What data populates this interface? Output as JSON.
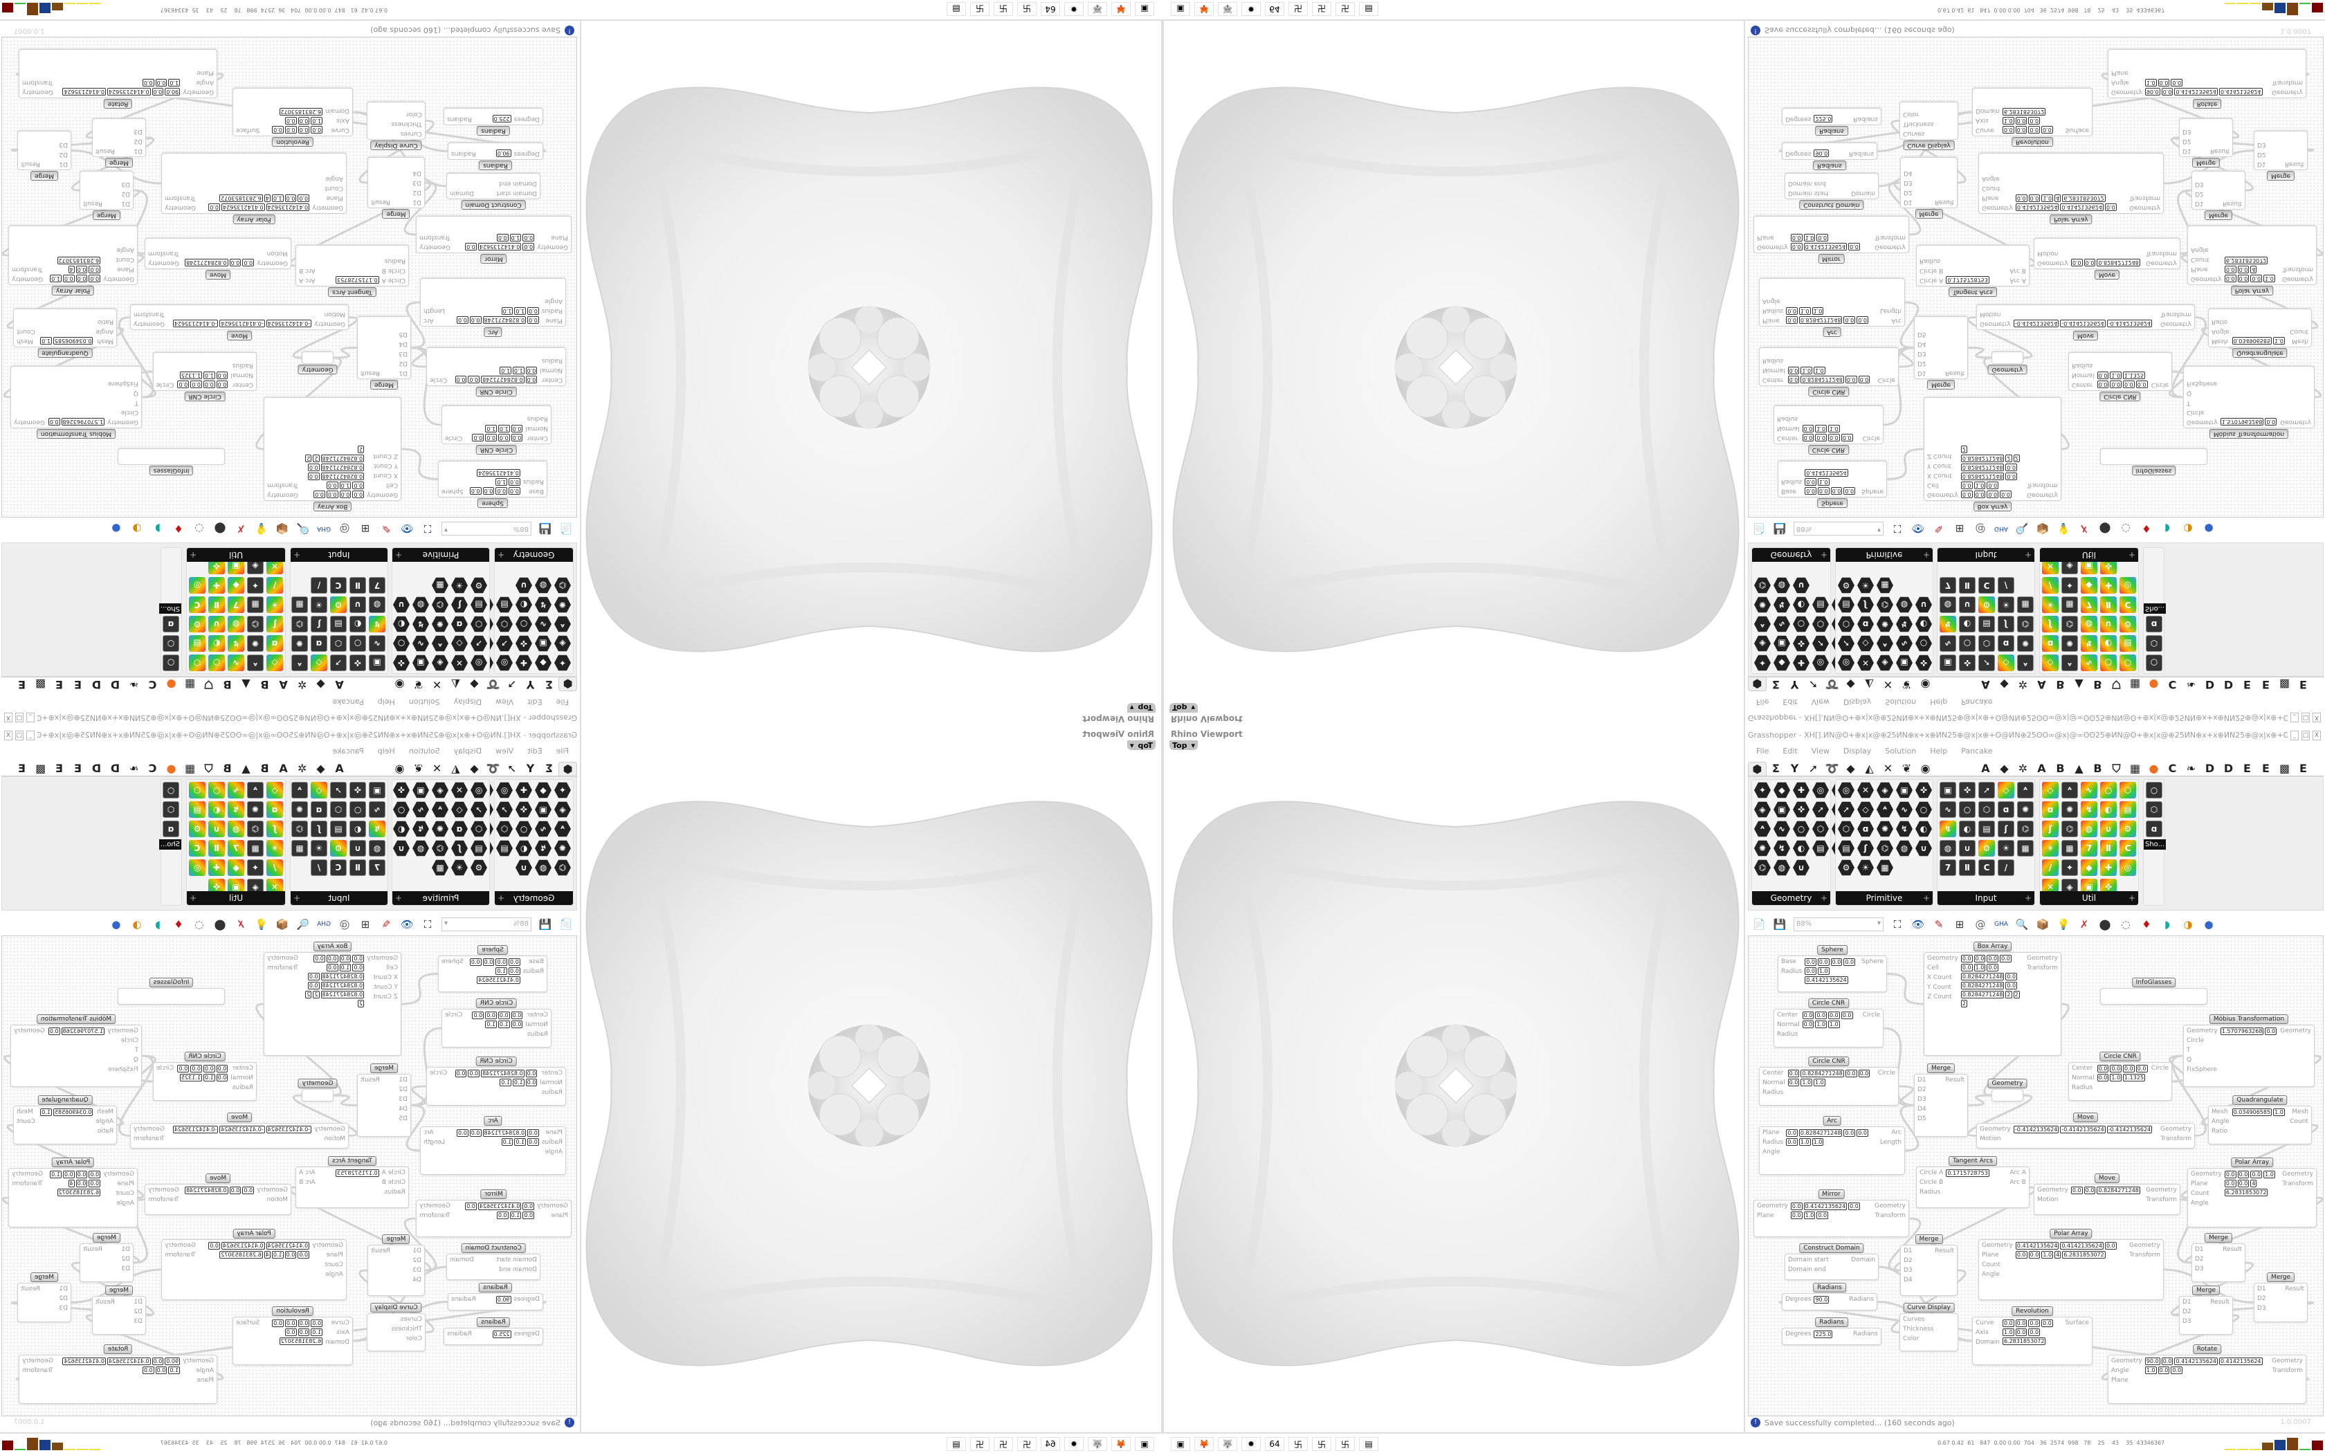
{
  "viewport": {
    "title": "Rhino Viewport",
    "view": "Top",
    "view_icon": "chevron-down-icon"
  },
  "grasshopper": {
    "title": "Grasshopper - XH[].ИN@ʘ+⊕x|x@⊕25ИN⊕x+x⊕ИN25⊕@x|x⊕+ʘ@ИN⊕25ʘʘ∞@x|@∞ʘʘ25⊕ИN@ʘ+⊕x|x@⊕25ИN⊕x+x⊕ИN25⊕@x|x⊕+ʘ@ИN.",
    "window_buttons": [
      "_",
      "□",
      "X"
    ],
    "menu": [
      "File",
      "Edit",
      "View",
      "Display",
      "Solution",
      "Help",
      "Pancake"
    ],
    "tabs": [
      "⬢",
      "Σ",
      "Y",
      "➚",
      "➰",
      "◆",
      "◭",
      "✕",
      "❦",
      "◉",
      "A",
      "◆",
      "✲",
      "A",
      "B",
      "▲",
      "B",
      "⛉",
      "▦",
      "●",
      "C",
      "❧",
      "D",
      "D",
      "E",
      "E",
      "▩",
      "E"
    ],
    "panels": [
      {
        "label": "Geometry",
        "icons": 23,
        "style": "hex"
      },
      {
        "label": "Primitive",
        "icons": 23,
        "style": "hex"
      },
      {
        "label": "Input",
        "icons": 24,
        "style": "sq"
      },
      {
        "label": "Util",
        "icons": 29,
        "style": "mixed"
      },
      {
        "label": "Sho...",
        "icons": 3,
        "style": "sq"
      }
    ],
    "zoom": "88%",
    "toolbar_icons": [
      "new-file-icon",
      "save-icon",
      "zoom-extents-icon",
      "preview-eye-icon",
      "sketch-pen-icon",
      "cluster-icon",
      "gha-icon",
      "search-icon",
      "package-icon",
      "bulb-icon",
      "wire-icon",
      "bake-icon",
      "shade-icon",
      "render-icon",
      "sphere-icon"
    ],
    "status": "Save successfully completed... (160 seconds ago)",
    "version": "1.0.0007",
    "nodes": [
      {
        "title": "Sphere",
        "inputs": [
          "Base",
          "Radius"
        ],
        "outputs": [
          "Sphere"
        ],
        "values": [
          "0.0",
          "0.0",
          "0.0",
          "0.0",
          "0.0",
          "1.0",
          "0.4142135624"
        ]
      },
      {
        "title": "Box Array",
        "inputs": [
          "Geometry",
          "Cell",
          "X Count",
          "Y Count",
          "Z Count"
        ],
        "outputs": [
          "Geometry",
          "Transform"
        ],
        "values": [
          "0.0",
          "0.0",
          "0.0",
          "0.0",
          "0.0",
          "1.0",
          "0.0",
          "0.8284271248",
          "0.0",
          "0.8284271248",
          "0.0",
          "0.8284271248",
          "2",
          "2",
          "2"
        ]
      },
      {
        "title": "InfoGlasses",
        "inputs": [],
        "outputs": [],
        "values": []
      },
      {
        "title": "Circle CNR",
        "inputs": [
          "Center",
          "Normal",
          "Radius"
        ],
        "outputs": [
          "Circle"
        ],
        "values": [
          "0.0",
          "0.0",
          "0.0",
          "0.0",
          "0.0",
          "1.0",
          "1.0"
        ]
      },
      {
        "title": "Circle CNR",
        "inputs": [
          "Center",
          "Normal",
          "Radius"
        ],
        "outputs": [
          "Circle"
        ],
        "values": [
          "0.0",
          "0.8284271248",
          "0.0",
          "0.0",
          "0.0",
          "1.0",
          "1.0"
        ]
      },
      {
        "title": "Möbius Transformation",
        "inputs": [
          "Geometry",
          "Circle",
          "T",
          "Q",
          "FixSphere"
        ],
        "outputs": [
          "Geometry"
        ],
        "values": [
          "1.5707963268",
          "0.0"
        ]
      },
      {
        "title": "Circle CNR",
        "inputs": [
          "Center",
          "Normal",
          "Radius"
        ],
        "outputs": [
          "Circle"
        ],
        "values": [
          "0.0",
          "0.0",
          "0.0",
          "0.0",
          "0.0",
          "1.0",
          "1.1325"
        ]
      },
      {
        "title": "Merge",
        "inputs": [
          "D1",
          "D2",
          "D3",
          "D4",
          "D5"
        ],
        "outputs": [
          "Result"
        ],
        "values": []
      },
      {
        "title": "Geometry",
        "inputs": [],
        "outputs": [],
        "values": []
      },
      {
        "title": "Quadrangulate",
        "inputs": [
          "Mesh",
          "Angle",
          "Ratio"
        ],
        "outputs": [
          "Mesh",
          "Count"
        ],
        "values": [
          "0.034906585",
          "1.0"
        ]
      },
      {
        "title": "Move",
        "inputs": [
          "Geometry",
          "Motion"
        ],
        "outputs": [
          "Geometry",
          "Transform"
        ],
        "values": [
          "-0.4142135624",
          "-0.4142135624",
          "-0.4142135624"
        ]
      },
      {
        "title": "Arc",
        "inputs": [
          "Plane",
          "Radius",
          "Angle"
        ],
        "outputs": [
          "Arc",
          "Length"
        ],
        "values": [
          "0.0",
          "0.8284271248",
          "0.0",
          "0.0",
          "0.0",
          "1.0",
          "1.0"
        ]
      },
      {
        "title": "Tangent Arcs",
        "inputs": [
          "Circle A",
          "Circle B",
          "Radius"
        ],
        "outputs": [
          "Arc A",
          "Arc B"
        ],
        "values": [
          "0.1715728753"
        ]
      },
      {
        "title": "Polar Array",
        "inputs": [
          "Geometry",
          "Plane",
          "Count",
          "Angle"
        ],
        "outputs": [
          "Geometry",
          "Transform"
        ],
        "values": [
          "0.0",
          "0.0",
          "0.0",
          "1.0",
          "0.0",
          "0.0",
          "4",
          "6.2831853072"
        ]
      },
      {
        "title": "Move",
        "inputs": [
          "Geometry",
          "Motion"
        ],
        "outputs": [
          "Geometry",
          "Transform"
        ],
        "values": [
          "0.0",
          "0.0",
          "0.8284271248"
        ]
      },
      {
        "title": "Mirror",
        "inputs": [
          "Geometry",
          "Plane"
        ],
        "outputs": [
          "Geometry",
          "Transform"
        ],
        "values": [
          "0.0",
          "0.4142135624",
          "0.0",
          "0.0",
          "1.0",
          "0.0"
        ]
      },
      {
        "title": "Merge",
        "inputs": [
          "D1",
          "D2",
          "D3",
          "D4"
        ],
        "outputs": [
          "Result"
        ],
        "values": []
      },
      {
        "title": "Construct Domain",
        "inputs": [
          "Domain start",
          "Domain end"
        ],
        "outputs": [
          "Domain"
        ],
        "values": []
      },
      {
        "title": "Polar Array",
        "inputs": [
          "Geometry",
          "Plane",
          "Count",
          "Angle"
        ],
        "outputs": [
          "Geometry",
          "Transform"
        ],
        "values": [
          "0.4142135624",
          "0.4142135624",
          "0.0",
          "0.0",
          "0.0",
          "1.0",
          "4",
          "6.2831853072"
        ]
      },
      {
        "title": "Merge",
        "inputs": [
          "D1",
          "D2",
          "D3"
        ],
        "outputs": [
          "Result"
        ],
        "values": []
      },
      {
        "title": "Merge",
        "inputs": [
          "D1",
          "D2",
          "D3"
        ],
        "outputs": [
          "Result"
        ],
        "values": []
      },
      {
        "title": "Merge",
        "inputs": [
          "D1",
          "D2",
          "D3"
        ],
        "outputs": [
          "Result"
        ],
        "values": []
      },
      {
        "title": "Radians",
        "inputs": [
          "Degrees"
        ],
        "outputs": [
          "Radians"
        ],
        "values": [
          "90.0"
        ]
      },
      {
        "title": "Curve Display",
        "inputs": [
          "Curves",
          "Thickness",
          "Color"
        ],
        "outputs": [],
        "values": []
      },
      {
        "title": "Revolution",
        "inputs": [
          "Curve",
          "Axis",
          "Domain"
        ],
        "outputs": [
          "Surface"
        ],
        "values": [
          "0.0",
          "0.0",
          "0.0",
          "0.0",
          "1.0",
          "0.0",
          "0.0",
          "6.2831853072"
        ]
      },
      {
        "title": "Radians",
        "inputs": [
          "Degrees"
        ],
        "outputs": [
          "Radians"
        ],
        "values": [
          "225.0"
        ]
      },
      {
        "title": "Rotate",
        "inputs": [
          "Geometry",
          "Angle",
          "Plane"
        ],
        "outputs": [
          "Geometry",
          "Transform"
        ],
        "values": [
          "90.0",
          "0.0",
          "0.4142135624",
          "0.4142135624",
          "1.0",
          "0.0",
          "0.0"
        ]
      }
    ]
  },
  "taskbar": {
    "icons": [
      "terminal-icon",
      "firefox-icon",
      "wolf-icon",
      "red-app-icon",
      "floppy-64-icon",
      "maze-icon",
      "maze-icon",
      "maze-icon",
      "calculator-icon"
    ],
    "icon_glyphs": [
      "▣",
      "🦊",
      "🐺",
      "✹",
      "64",
      "卐",
      "卐",
      "卐",
      "▤"
    ],
    "stats": "0.67 0.42  61   847  0.00 0.00  704   36  2574  998   78    25    43    35  43346367",
    "meter_colors": [
      "#f0e040",
      "#f0e040",
      "#f0e040",
      "#7a4a10",
      "#1a3f8a",
      "#7a4010",
      "#40c040",
      "#7a0000"
    ],
    "meter_levels": [
      0.05,
      0.05,
      0.05,
      0.6,
      0.85,
      1.0,
      0.05,
      0.8
    ]
  }
}
